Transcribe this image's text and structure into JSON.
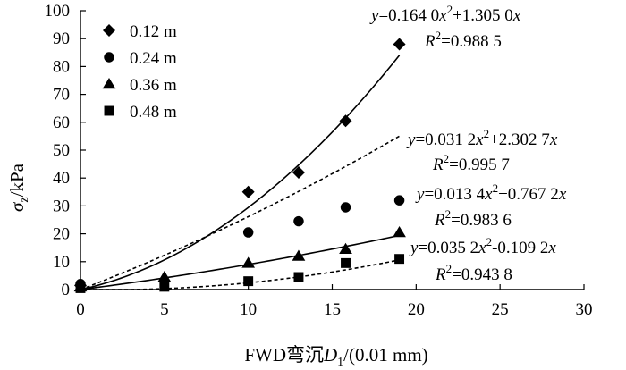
{
  "chart_data": {
    "type": "scatter",
    "xlabel": "FWD弯沉D1/(0.01 mm)",
    "xlabel_parts": {
      "prefix": "FWD弯沉",
      "var": "D",
      "sub": "1",
      "suffix": "/(0.01 mm)"
    },
    "ylabel": "σz/kPa",
    "ylabel_parts": {
      "var": "σ",
      "sub": "z",
      "suffix": "/kPa"
    },
    "xlim": [
      0,
      30
    ],
    "ylim": [
      0,
      100
    ],
    "x_ticks": [
      0,
      5,
      10,
      15,
      20,
      25,
      30
    ],
    "y_ticks": [
      0,
      10,
      20,
      30,
      40,
      50,
      60,
      70,
      80,
      90,
      100
    ],
    "grid": false,
    "legend_position": "top-left",
    "series": [
      {
        "name": "0.12 m",
        "marker": "diamond",
        "fit_style": "solid",
        "fit": {
          "a": 0.164,
          "b": 1.305
        },
        "points": [
          [
            0,
            1.5
          ],
          [
            10,
            35
          ],
          [
            13,
            42
          ],
          [
            15.8,
            60.5
          ],
          [
            19,
            88
          ]
        ],
        "equation": "y=0.164 0x²+1.305 0x",
        "r2": "R²=0.988 5"
      },
      {
        "name": "0.24 m",
        "marker": "circle",
        "fit_style": "dashed",
        "fit": {
          "a": 0.0312,
          "b": 2.3027
        },
        "points": [
          [
            0,
            2
          ],
          [
            10,
            20.5
          ],
          [
            13,
            24.5
          ],
          [
            15.8,
            29.5
          ],
          [
            19,
            32
          ]
        ],
        "equation": "y=0.031 2x²+2.302 7x",
        "r2": "R²=0.995 7"
      },
      {
        "name": "0.36 m",
        "marker": "triangle",
        "fit_style": "solid",
        "fit": {
          "a": 0.0134,
          "b": 0.7672
        },
        "points": [
          [
            0,
            1
          ],
          [
            5,
            4.5
          ],
          [
            10,
            9.5
          ],
          [
            13,
            12
          ],
          [
            15.8,
            14.5
          ],
          [
            19,
            20.5
          ]
        ],
        "equation": "y=0.013 4x²+0.767 2x",
        "r2": "R²=0.983 6"
      },
      {
        "name": "0.48 m",
        "marker": "square",
        "fit_style": "dashed",
        "fit": {
          "a": 0.0352,
          "b": -0.1092
        },
        "points": [
          [
            0,
            0.5
          ],
          [
            5,
            1
          ],
          [
            10,
            3
          ],
          [
            13,
            4.5
          ],
          [
            15.8,
            9.5
          ],
          [
            19,
            11
          ]
        ],
        "equation": "y=0.035 2x²-0.109 2x",
        "r2": "R²=0.943 8"
      }
    ]
  }
}
